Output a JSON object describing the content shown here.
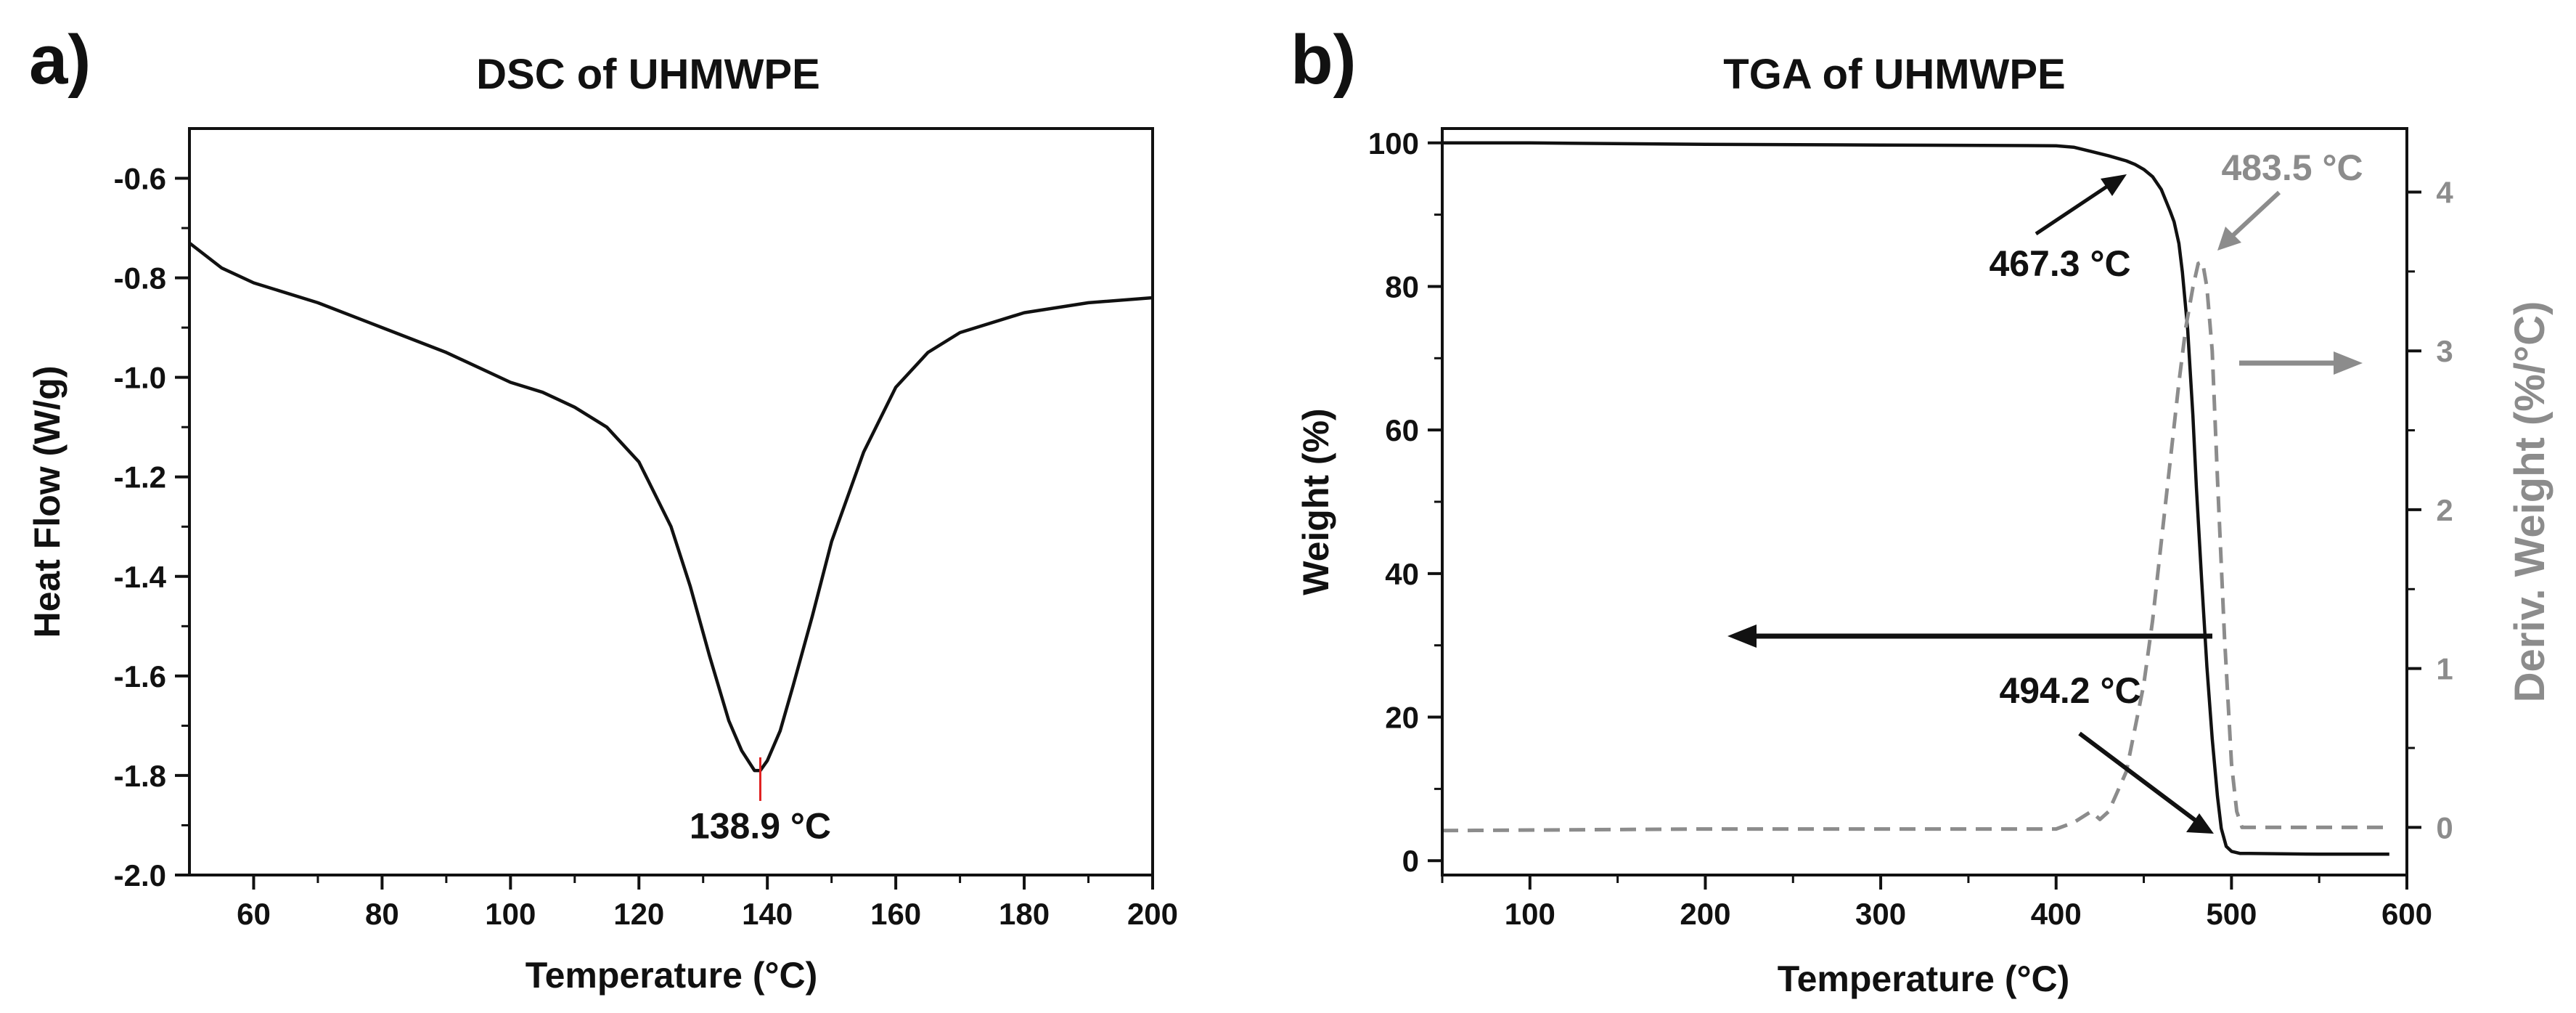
{
  "chart_data": [
    {
      "panel": "a)",
      "type": "line",
      "title": "DSC of UHMWPE",
      "xlabel": "Temperature (°C)",
      "ylabel": "Heat Flow (W/g)",
      "xlim": [
        50,
        200
      ],
      "ylim": [
        -2.0,
        -0.5
      ],
      "xticks": [
        60,
        80,
        100,
        120,
        140,
        160,
        180,
        200
      ],
      "yticks": [
        -2.0,
        -1.8,
        -1.6,
        -1.4,
        -1.2,
        -1.0,
        -0.8,
        -0.6
      ],
      "ytick_labels": [
        "-2.0",
        "-1.8",
        "-1.6",
        "-1.4",
        "-1.2",
        "-1.0",
        "-0.8",
        "-0.6"
      ],
      "grid": false,
      "series": [
        {
          "name": "Heat Flow",
          "color": "#111111",
          "x": [
            50,
            55,
            60,
            70,
            80,
            90,
            100,
            105,
            110,
            115,
            120,
            125,
            128,
            131,
            134,
            136,
            138,
            138.9,
            140,
            142,
            144,
            147,
            150,
            155,
            160,
            165,
            170,
            180,
            190,
            200
          ],
          "y": [
            -0.73,
            -0.78,
            -0.81,
            -0.85,
            -0.9,
            -0.95,
            -1.01,
            -1.03,
            -1.06,
            -1.1,
            -1.17,
            -1.3,
            -1.42,
            -1.56,
            -1.69,
            -1.75,
            -1.79,
            -1.79,
            -1.77,
            -1.71,
            -1.62,
            -1.48,
            -1.33,
            -1.15,
            -1.02,
            -0.95,
            -0.91,
            -0.87,
            -0.85,
            -0.84
          ]
        }
      ],
      "peak_marker": {
        "x": 138.9,
        "y": -1.8,
        "color": "#e02020"
      },
      "annotations": [
        {
          "text": "138.9 °C",
          "x": 138.9,
          "y": -1.9
        }
      ]
    },
    {
      "panel": "b)",
      "type": "line",
      "title": "TGA of UHMWPE",
      "xlabel": "Temperature (°C)",
      "ylabel": "Weight (%)",
      "y2label": "Deriv. Weight (%/°C)",
      "xlim": [
        50,
        600
      ],
      "ylim": [
        -2,
        102
      ],
      "y2lim": [
        -0.3,
        4.4
      ],
      "xticks": [
        100,
        200,
        300,
        400,
        500,
        600
      ],
      "yticks": [
        0,
        20,
        40,
        60,
        80,
        100
      ],
      "y2ticks": [
        0,
        1,
        2,
        3,
        4
      ],
      "grid": false,
      "series": [
        {
          "name": "Weight",
          "axis": "left",
          "style": "solid",
          "color": "#111111",
          "x": [
            50,
            100,
            200,
            300,
            400,
            410,
            420,
            430,
            440,
            445,
            450,
            455,
            460,
            465,
            467.3,
            470,
            472,
            475,
            478,
            480,
            483,
            486,
            489,
            492,
            494.2,
            497,
            500,
            505,
            510,
            550,
            590
          ],
          "y": [
            100,
            100,
            99.8,
            99.7,
            99.6,
            99.4,
            98.8,
            98.2,
            97.5,
            97,
            96.3,
            95.3,
            93.5,
            90.5,
            89,
            86,
            82,
            74,
            62,
            52,
            39,
            27,
            17,
            9,
            4.5,
            2,
            1.3,
            1,
            1,
            0.9,
            0.9
          ]
        },
        {
          "name": "Deriv. Weight",
          "axis": "right",
          "style": "dashed",
          "color": "#8c8c8c",
          "x": [
            50,
            200,
            300,
            400,
            410,
            420,
            425,
            430,
            440,
            450,
            455,
            460,
            465,
            470,
            474,
            478,
            481,
            483.5,
            486,
            489,
            492,
            496,
            500,
            503,
            506,
            510,
            550,
            590
          ],
          "y": [
            -0.02,
            -0.01,
            -0.01,
            -0.01,
            0.03,
            0.1,
            0.05,
            0.1,
            0.35,
            0.9,
            1.3,
            1.8,
            2.3,
            2.8,
            3.15,
            3.4,
            3.55,
            3.56,
            3.4,
            3.0,
            2.2,
            1.2,
            0.4,
            0.1,
            0.0,
            0.0,
            0.0,
            0.0
          ]
        }
      ],
      "annotations": [
        {
          "text": "467.3 °C",
          "x": 467.3,
          "color": "#111111"
        },
        {
          "text": "483.5 °C",
          "x": 483.5,
          "color": "#8c8c8c"
        },
        {
          "text": "494.2 °C",
          "x": 494.2,
          "color": "#111111"
        }
      ]
    }
  ]
}
